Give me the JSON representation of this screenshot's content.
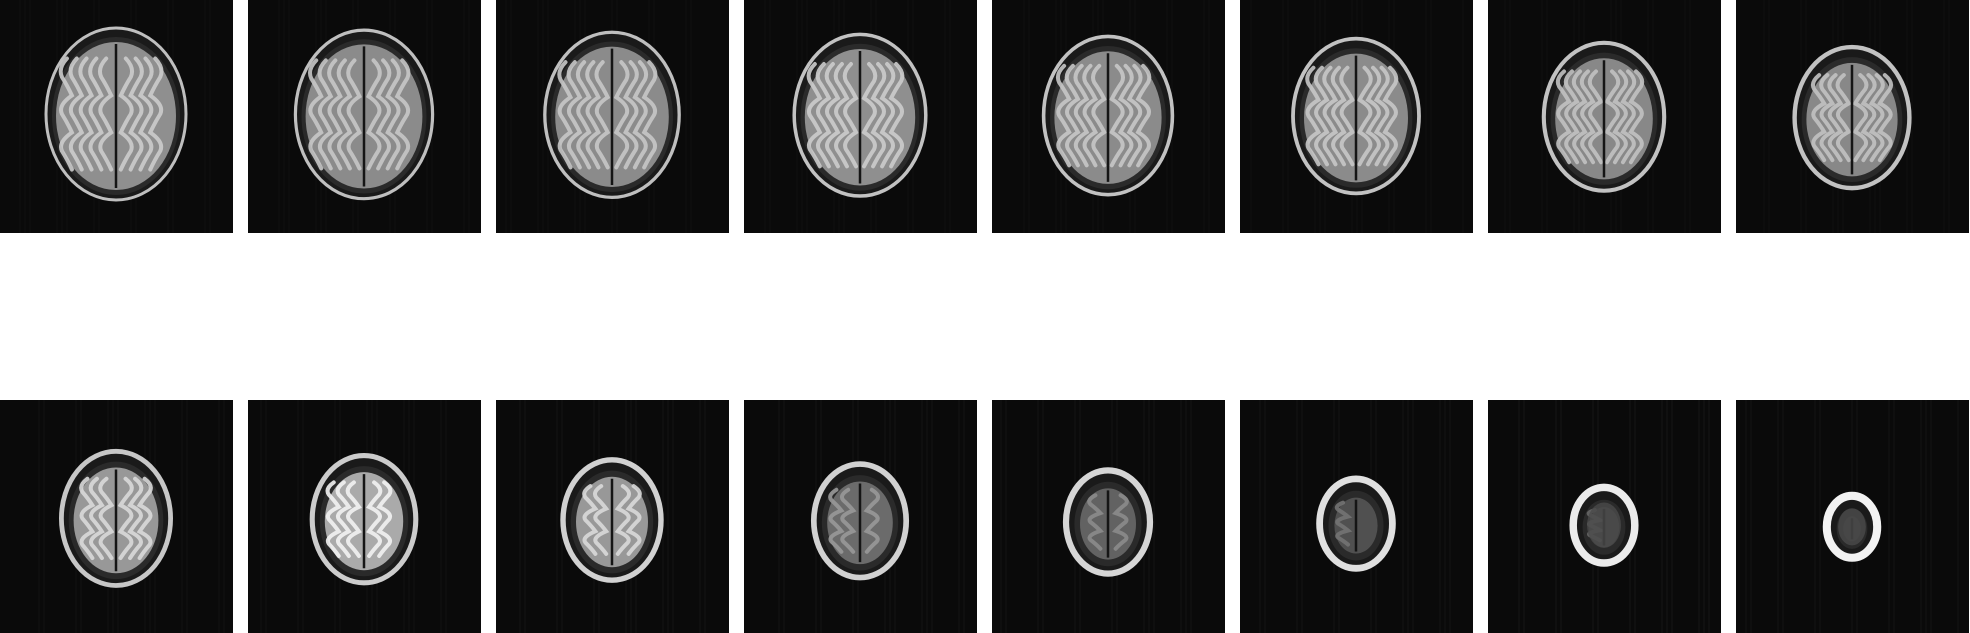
{
  "figure": {
    "rows": [
      {
        "name": "top-row",
        "slices": [
          {
            "id": 1,
            "brain_scale": 1.0,
            "skull_brightness": 0.75,
            "cortex_brightness": 0.8,
            "gyri_density": 0.9
          },
          {
            "id": 2,
            "brain_scale": 0.98,
            "skull_brightness": 0.75,
            "cortex_brightness": 0.78,
            "gyri_density": 0.9
          },
          {
            "id": 3,
            "brain_scale": 0.96,
            "skull_brightness": 0.75,
            "cortex_brightness": 0.78,
            "gyri_density": 0.9
          },
          {
            "id": 4,
            "brain_scale": 0.94,
            "skull_brightness": 0.76,
            "cortex_brightness": 0.8,
            "gyri_density": 0.9
          },
          {
            "id": 5,
            "brain_scale": 0.92,
            "skull_brightness": 0.76,
            "cortex_brightness": 0.78,
            "gyri_density": 0.9
          },
          {
            "id": 6,
            "brain_scale": 0.9,
            "skull_brightness": 0.76,
            "cortex_brightness": 0.78,
            "gyri_density": 0.9
          },
          {
            "id": 7,
            "brain_scale": 0.86,
            "skull_brightness": 0.76,
            "cortex_brightness": 0.76,
            "gyri_density": 0.85
          },
          {
            "id": 8,
            "brain_scale": 0.82,
            "skull_brightness": 0.76,
            "cortex_brightness": 0.76,
            "gyri_density": 0.8
          }
        ]
      },
      {
        "name": "bottom-row",
        "slices": [
          {
            "id": 9,
            "brain_scale": 0.78,
            "skull_brightness": 0.78,
            "cortex_brightness": 0.85,
            "gyri_density": 0.6
          },
          {
            "id": 10,
            "brain_scale": 0.74,
            "skull_brightness": 0.8,
            "cortex_brightness": 0.95,
            "gyri_density": 0.5
          },
          {
            "id": 11,
            "brain_scale": 0.7,
            "skull_brightness": 0.82,
            "cortex_brightness": 0.85,
            "gyri_density": 0.4
          },
          {
            "id": 12,
            "brain_scale": 0.66,
            "skull_brightness": 0.82,
            "cortex_brightness": 0.6,
            "gyri_density": 0.25
          },
          {
            "id": 13,
            "brain_scale": 0.6,
            "skull_brightness": 0.84,
            "cortex_brightness": 0.55,
            "gyri_density": 0.2
          },
          {
            "id": 14,
            "brain_scale": 0.52,
            "skull_brightness": 0.88,
            "cortex_brightness": 0.45,
            "gyri_density": 0.1
          },
          {
            "id": 15,
            "brain_scale": 0.44,
            "skull_brightness": 0.92,
            "cortex_brightness": 0.4,
            "gyri_density": 0.05
          },
          {
            "id": 16,
            "brain_scale": 0.36,
            "skull_brightness": 0.95,
            "cortex_brightness": 0.35,
            "gyri_density": 0.0
          }
        ]
      }
    ]
  }
}
